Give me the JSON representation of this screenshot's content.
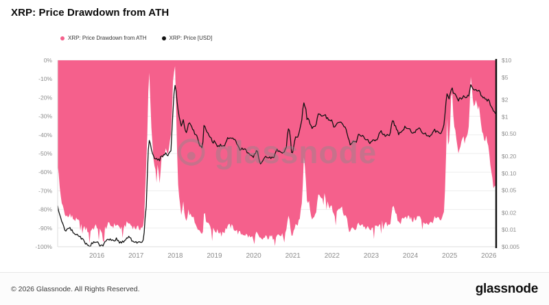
{
  "header": {
    "title": "XRP: Price Drawdown from ATH"
  },
  "legend": [
    {
      "label": "XRP: Price Drawdown from ATH",
      "color": "#f5608c"
    },
    {
      "label": "XRP: Price [USD]",
      "color": "#111111"
    }
  ],
  "watermark": {
    "text": "glassnode"
  },
  "footer": {
    "copyright": "© 2026 Glassnode. All Rights Reserved.",
    "brand": "glassnode"
  },
  "colors": {
    "drawdown_area": "#f5608c",
    "price_line": "#111111",
    "grid": "#ededed",
    "axis_text": "#8c8c8c",
    "spine": "#111111"
  },
  "chart_data": {
    "type": "area",
    "title": "XRP: Price Drawdown from ATH",
    "x_range": [
      2015.0,
      2026.17
    ],
    "x_axis": {
      "ticks": [
        2016,
        2017,
        2018,
        2019,
        2020,
        2021,
        2022,
        2023,
        2024,
        2025,
        2026
      ]
    },
    "left_axis": {
      "unit": "%",
      "range": [
        0,
        -100
      ],
      "values": [
        0,
        -10,
        -20,
        -30,
        -40,
        -50,
        -60,
        -70,
        -80,
        -90,
        -100
      ],
      "labels": [
        "0%",
        "-10%",
        "-20%",
        "-30%",
        "-40%",
        "-50%",
        "-60%",
        "-70%",
        "-80%",
        "-90%",
        "-100%"
      ]
    },
    "right_axis": {
      "scale": "log",
      "unit": "USD",
      "ticks": [
        10,
        5,
        2,
        1,
        0.5,
        0.2,
        0.1,
        0.05,
        0.02,
        0.01,
        0.005
      ],
      "labels": [
        "$10",
        "$5",
        "$2",
        "$1",
        "$0.50",
        "$0.20",
        "$0.10",
        "$0.05",
        "$0.02",
        "$0.01",
        "$0.005"
      ]
    },
    "x": [
      2015.0,
      2015.06,
      2015.12,
      2015.2,
      2015.3,
      2015.4,
      2015.5,
      2015.6,
      2015.7,
      2015.8,
      2015.9,
      2016.0,
      2016.1,
      2016.2,
      2016.3,
      2016.4,
      2016.5,
      2016.6,
      2016.7,
      2016.8,
      2016.9,
      2017.0,
      2017.1,
      2017.2,
      2017.28,
      2017.33,
      2017.4,
      2017.45,
      2017.5,
      2017.55,
      2017.6,
      2017.65,
      2017.7,
      2017.75,
      2017.8,
      2017.85,
      2017.9,
      2017.94,
      2017.96,
      2018.0,
      2018.03,
      2018.06,
      2018.1,
      2018.15,
      2018.2,
      2018.25,
      2018.3,
      2018.35,
      2018.4,
      2018.45,
      2018.5,
      2018.55,
      2018.6,
      2018.65,
      2018.7,
      2018.73,
      2018.78,
      2018.83,
      2018.88,
      2018.92,
      2018.96,
      2019.0,
      2019.08,
      2019.16,
      2019.25,
      2019.33,
      2019.42,
      2019.5,
      2019.58,
      2019.66,
      2019.75,
      2019.83,
      2019.92,
      2020.0,
      2020.08,
      2020.16,
      2020.22,
      2020.3,
      2020.4,
      2020.5,
      2020.6,
      2020.66,
      2020.75,
      2020.83,
      2020.88,
      2020.92,
      2020.96,
      2021.0,
      2021.06,
      2021.12,
      2021.18,
      2021.24,
      2021.28,
      2021.32,
      2021.36,
      2021.4,
      2021.45,
      2021.5,
      2021.55,
      2021.6,
      2021.65,
      2021.7,
      2021.75,
      2021.8,
      2021.85,
      2021.9,
      2021.95,
      2022.0,
      2022.06,
      2022.12,
      2022.18,
      2022.25,
      2022.3,
      2022.36,
      2022.42,
      2022.46,
      2022.5,
      2022.56,
      2022.62,
      2022.68,
      2022.72,
      2022.78,
      2022.84,
      2022.9,
      2022.96,
      2023.0,
      2023.06,
      2023.12,
      2023.18,
      2023.25,
      2023.3,
      2023.36,
      2023.42,
      2023.48,
      2023.53,
      2023.56,
      2023.6,
      2023.65,
      2023.7,
      2023.75,
      2023.8,
      2023.85,
      2023.9,
      2023.95,
      2024.0,
      2024.06,
      2024.12,
      2024.18,
      2024.25,
      2024.3,
      2024.36,
      2024.42,
      2024.48,
      2024.54,
      2024.6,
      2024.65,
      2024.7,
      2024.75,
      2024.8,
      2024.85,
      2024.88,
      2024.9,
      2024.92,
      2024.94,
      2024.96,
      2024.98,
      2025.0,
      2025.04,
      2025.06,
      2025.1,
      2025.14,
      2025.18,
      2025.22,
      2025.26,
      2025.3,
      2025.34,
      2025.38,
      2025.42,
      2025.46,
      2025.5,
      2025.54,
      2025.56,
      2025.6,
      2025.64,
      2025.68,
      2025.72,
      2025.76,
      2025.8,
      2025.84,
      2025.88,
      2025.92,
      2025.96,
      2026.0,
      2026.04,
      2026.08,
      2026.12
    ],
    "series": [
      {
        "name": "XRP: Price Drawdown from ATH",
        "axis": "left",
        "style": "area",
        "color": "#f5608c",
        "values": [
          -55,
          -70,
          -78,
          -84,
          -82,
          -85,
          -86,
          -88,
          -90,
          -92,
          -90,
          -89,
          -92,
          -90,
          -88,
          -89,
          -88,
          -90,
          -89,
          -87,
          -89,
          -90,
          -90,
          -89,
          -45,
          -2,
          -40,
          -55,
          -60,
          -57,
          -62,
          -50,
          -53,
          -48,
          -50,
          -45,
          -40,
          -12,
          -8,
          -3,
          -35,
          -60,
          -74,
          -83,
          -76,
          -85,
          -87,
          -78,
          -82,
          -84,
          -87,
          -88,
          -91,
          -92,
          -93,
          -81,
          -85,
          -87,
          -88,
          -90,
          -91,
          -91,
          -92,
          -92,
          -92,
          -89,
          -89,
          -90,
          -92,
          -93,
          -93,
          -94,
          -95,
          -95,
          -93,
          -96,
          -96,
          -95,
          -95,
          -95,
          -93,
          -94,
          -94,
          -93,
          -84,
          -86,
          -94,
          -94,
          -88,
          -88,
          -85,
          -74,
          -52,
          -61,
          -76,
          -75,
          -82,
          -84,
          -83,
          -80,
          -71,
          -73,
          -72,
          -71,
          -74,
          -77,
          -79,
          -78,
          -84,
          -79,
          -79,
          -79,
          -82,
          -84,
          -90,
          -92,
          -91,
          -90,
          -91,
          -87,
          -88,
          -88,
          -90,
          -90,
          -91,
          -91,
          -90,
          -90,
          -88,
          -86,
          -88,
          -88,
          -88,
          -88,
          -80,
          -76,
          -82,
          -84,
          -87,
          -87,
          -85,
          -83,
          -84,
          -84,
          -85,
          -86,
          -85,
          -84,
          -84,
          -86,
          -87,
          -87,
          -88,
          -87,
          -85,
          -85,
          -85,
          -86,
          -86,
          -83,
          -72,
          -62,
          -40,
          -29,
          -42,
          -45,
          -42,
          -19,
          -16,
          -33,
          -38,
          -42,
          -50,
          -46,
          -44,
          -41,
          -44,
          -42,
          -40,
          -33,
          -8,
          -14,
          -22,
          -25,
          -22,
          -26,
          -25,
          -35,
          -38,
          -42,
          -40,
          -45,
          -48,
          -55,
          -62,
          -68
        ]
      },
      {
        "name": "XRP: Price [USD]",
        "axis": "right",
        "style": "line",
        "color": "#111111",
        "values": [
          0.026,
          0.017,
          0.013,
          0.0095,
          0.011,
          0.0088,
          0.0082,
          0.0072,
          0.006,
          0.0049,
          0.0059,
          0.0064,
          0.005,
          0.0058,
          0.007,
          0.0065,
          0.0068,
          0.0059,
          0.0063,
          0.0075,
          0.0064,
          0.006,
          0.0059,
          0.0063,
          0.033,
          0.4,
          0.25,
          0.19,
          0.17,
          0.18,
          0.16,
          0.21,
          0.2,
          0.22,
          0.21,
          0.23,
          0.25,
          1.0,
          2.3,
          3.6,
          2.5,
          1.55,
          1.0,
          0.65,
          0.9,
          0.58,
          0.5,
          0.85,
          0.68,
          0.6,
          0.49,
          0.45,
          0.34,
          0.3,
          0.28,
          0.72,
          0.57,
          0.51,
          0.46,
          0.4,
          0.36,
          0.36,
          0.31,
          0.31,
          0.31,
          0.42,
          0.43,
          0.4,
          0.32,
          0.26,
          0.28,
          0.24,
          0.2,
          0.19,
          0.27,
          0.15,
          0.16,
          0.19,
          0.2,
          0.18,
          0.26,
          0.24,
          0.24,
          0.26,
          0.6,
          0.55,
          0.22,
          0.23,
          0.45,
          0.44,
          0.57,
          1.0,
          1.85,
          1.5,
          0.92,
          0.95,
          0.7,
          0.62,
          0.65,
          0.78,
          1.1,
          1.05,
          1.07,
          1.1,
          1.0,
          0.88,
          0.82,
          0.84,
          0.62,
          0.8,
          0.8,
          0.8,
          0.7,
          0.62,
          0.4,
          0.32,
          0.34,
          0.38,
          0.35,
          0.5,
          0.46,
          0.45,
          0.4,
          0.39,
          0.34,
          0.35,
          0.39,
          0.38,
          0.45,
          0.54,
          0.46,
          0.47,
          0.47,
          0.47,
          0.78,
          0.93,
          0.7,
          0.62,
          0.5,
          0.51,
          0.58,
          0.65,
          0.62,
          0.61,
          0.57,
          0.53,
          0.55,
          0.62,
          0.61,
          0.52,
          0.5,
          0.49,
          0.44,
          0.48,
          0.58,
          0.56,
          0.57,
          0.53,
          0.52,
          0.65,
          1.1,
          1.45,
          2.3,
          2.75,
          2.25,
          2.1,
          2.25,
          3.1,
          3.25,
          2.55,
          2.4,
          2.25,
          1.95,
          2.1,
          2.15,
          2.3,
          2.15,
          2.25,
          2.3,
          2.55,
          3.55,
          3.3,
          3.0,
          2.85,
          3.0,
          2.8,
          2.85,
          2.4,
          2.3,
          2.1,
          2.2,
          2.0,
          1.9,
          1.65,
          1.4,
          1.18
        ]
      }
    ]
  }
}
